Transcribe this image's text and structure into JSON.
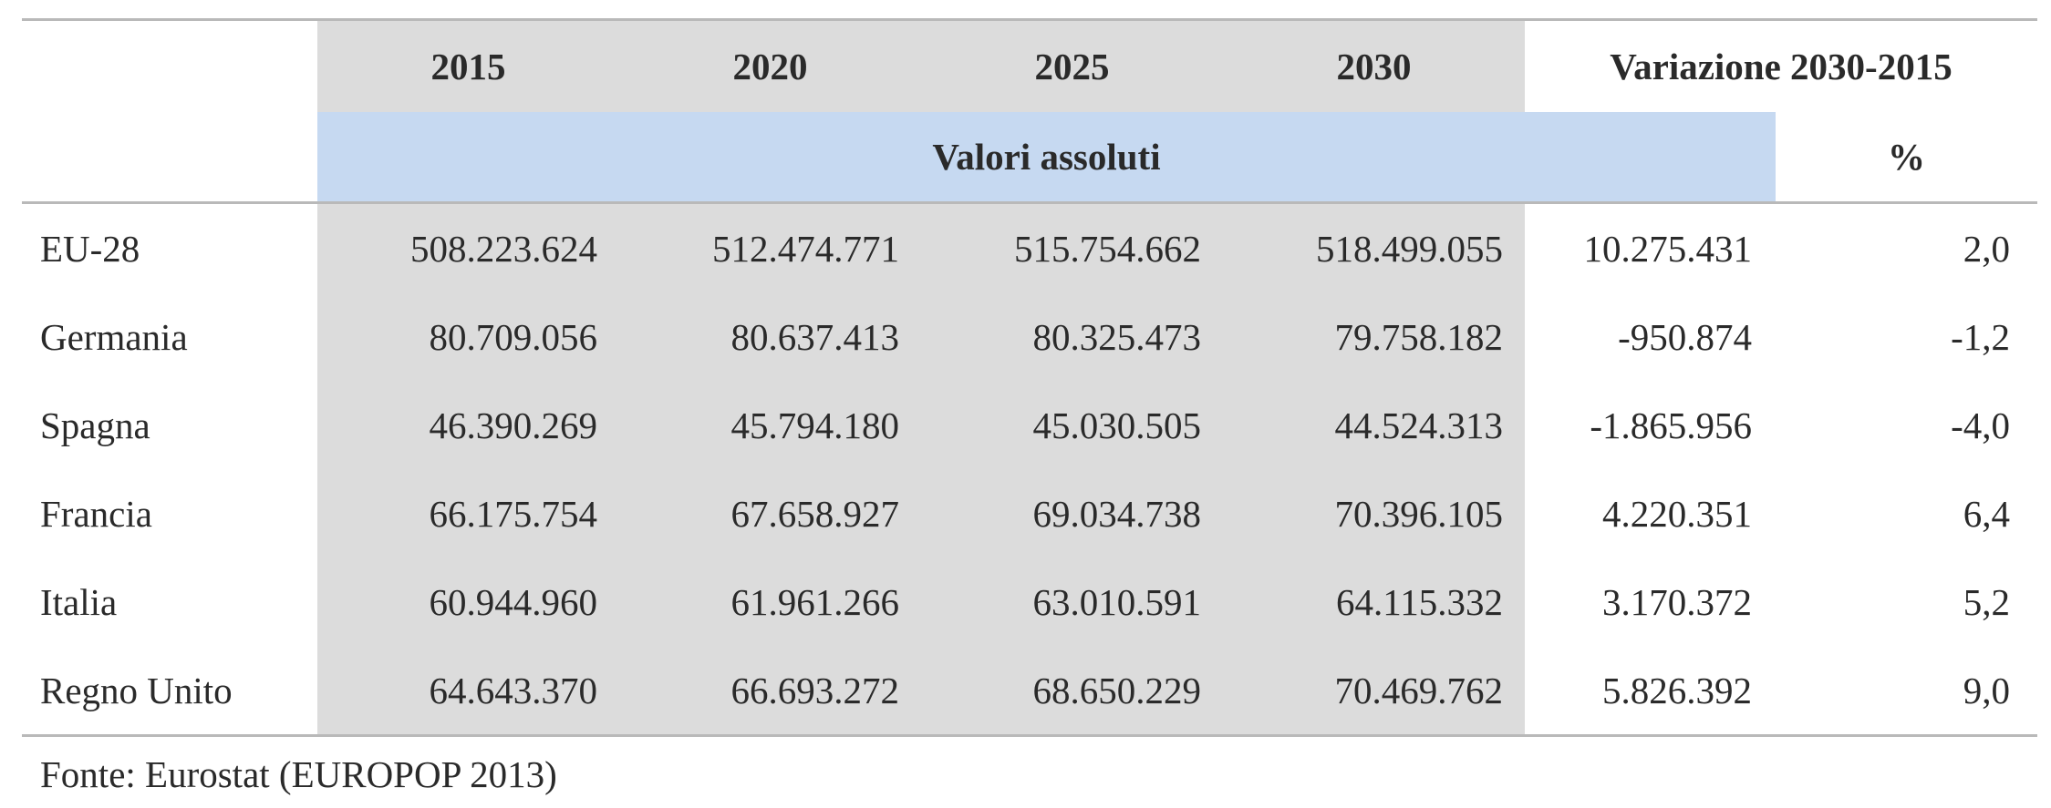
{
  "header": {
    "years": [
      "2015",
      "2020",
      "2025",
      "2030"
    ],
    "variation_label": "Variazione 2030-2015",
    "absolute_values_label": "Valori assoluti",
    "percent_label": "%"
  },
  "rows": [
    {
      "label": "EU-28",
      "values": [
        "508.223.624",
        "512.474.771",
        "515.754.662",
        "518.499.055"
      ],
      "variation": "10.275.431",
      "percent": "2,0"
    },
    {
      "label": "Germania",
      "values": [
        "80.709.056",
        "80.637.413",
        "80.325.473",
        "79.758.182"
      ],
      "variation": "-950.874",
      "percent": "-1,2"
    },
    {
      "label": "Spagna",
      "values": [
        "46.390.269",
        "45.794.180",
        "45.030.505",
        "44.524.313"
      ],
      "variation": "-1.865.956",
      "percent": "-4,0"
    },
    {
      "label": "Francia",
      "values": [
        "66.175.754",
        "67.658.927",
        "69.034.738",
        "70.396.105"
      ],
      "variation": "4.220.351",
      "percent": "6,4"
    },
    {
      "label": "Italia",
      "values": [
        "60.944.960",
        "61.961.266",
        "63.010.591",
        "64.115.332"
      ],
      "variation": "3.170.372",
      "percent": "5,2"
    },
    {
      "label": "Regno Unito",
      "values": [
        "64.643.370",
        "66.693.272",
        "68.650.229",
        "70.469.762"
      ],
      "variation": "5.826.392",
      "percent": "9,0"
    }
  ],
  "source": "Fonte: Eurostat (EUROPOP 2013)"
}
